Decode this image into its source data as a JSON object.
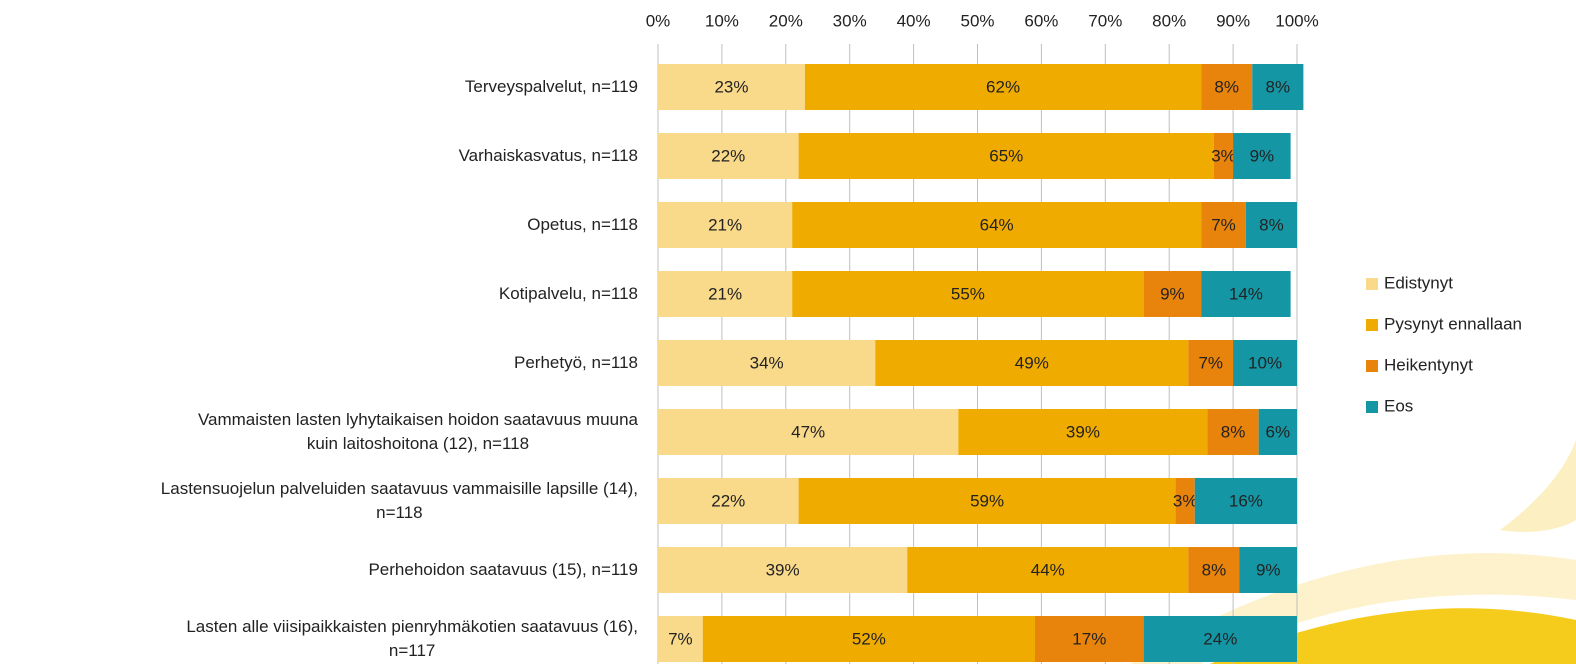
{
  "chart_data": {
    "type": "stacked-bar-horizontal",
    "categories": [
      "Terveyspalvelut, n=119",
      "Varhaiskasvatus, n=118",
      "Opetus, n=118",
      "Kotipalvelu, n=118",
      "Perhetyö, n=118",
      "Vammaisten lasten lyhytaikaisen hoidon saatavuus muuna\nkuin laitoshoitona (12), n=118",
      "Lastensuojelun palveluiden saatavuus vammaisille lapsille (14),\nn=118",
      "Perhehoidon saatavuus (15), n=119",
      "Lasten alle viisipaikkaisten pienryhmäkotien saatavuus (16),\nn=117"
    ],
    "series": [
      {
        "name": "Edistynyt",
        "color": "#f9d98a",
        "values": [
          23,
          22,
          21,
          21,
          34,
          47,
          22,
          39,
          7
        ],
        "value_labels": [
          "23%",
          "22%",
          "21%",
          "21%",
          "34%",
          "47%",
          "22%",
          "39%",
          "7%"
        ]
      },
      {
        "name": "Pysynyt ennallaan",
        "color": "#f0ab00",
        "values": [
          62,
          65,
          64,
          55,
          49,
          39,
          59,
          44,
          52
        ],
        "value_labels": [
          "62%",
          "65%",
          "64%",
          "55%",
          "49%",
          "39%",
          "59%",
          "44%",
          "52%"
        ]
      },
      {
        "name": "Heikentynyt",
        "color": "#e8830c",
        "values": [
          8,
          3,
          7,
          9,
          7,
          8,
          3,
          8,
          17
        ],
        "value_labels": [
          "8%",
          "3%",
          "7%",
          "9%",
          "7%",
          "8%",
          "3%",
          "8%",
          "17%"
        ]
      },
      {
        "name": "Eos",
        "color": "#1596a5",
        "values": [
          8,
          9,
          8,
          14,
          10,
          6,
          16,
          9,
          24
        ],
        "value_labels": [
          "8%",
          "9%",
          "8%",
          "14%",
          "10%",
          "6%",
          "16%",
          "9%",
          "24%"
        ]
      }
    ],
    "xlim": [
      0,
      100
    ],
    "xticks": [
      {
        "value": 0,
        "label": "0%"
      },
      {
        "value": 10,
        "label": "10%"
      },
      {
        "value": 20,
        "label": "20%"
      },
      {
        "value": 30,
        "label": "30%"
      },
      {
        "value": 40,
        "label": "40%"
      },
      {
        "value": 50,
        "label": "50%"
      },
      {
        "value": 60,
        "label": "60%"
      },
      {
        "value": 70,
        "label": "70%"
      },
      {
        "value": 80,
        "label": "80%"
      },
      {
        "value": 90,
        "label": "90%"
      },
      {
        "value": 100,
        "label": "100%"
      }
    ],
    "grid": true,
    "legend": "right"
  }
}
